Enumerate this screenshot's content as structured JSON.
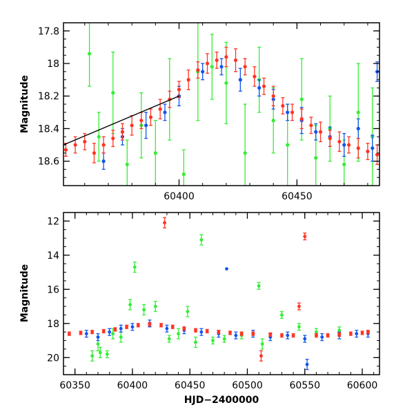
{
  "chart_data": [
    {
      "type": "scatter",
      "panel": "top",
      "title": "",
      "xlabel": "",
      "ylabel": "Magnitude",
      "xlim": [
        60351,
        60485
      ],
      "ylim": [
        18.75,
        17.75
      ],
      "y_inverted": true,
      "x_ticks": [
        "60400",
        "60450"
      ],
      "y_ticks": [
        "17.8",
        "18",
        "18.2",
        "18.4",
        "18.6"
      ],
      "colors": {
        "green": "#33ee33",
        "blue": "#1155ee",
        "red": "#ff3322",
        "trend": "#000000"
      },
      "series": [
        {
          "color": "green",
          "x": [
            60362,
            60366,
            60372,
            60378,
            60384,
            60390,
            60396,
            60402,
            60408,
            60414,
            60420,
            60428,
            60434,
            60440,
            60446,
            60452,
            60458,
            60464,
            60470,
            60476,
            60482
          ],
          "y": [
            17.94,
            18.45,
            18.18,
            18.62,
            18.38,
            18.55,
            18.22,
            18.68,
            18.05,
            18.02,
            18.12,
            18.55,
            18.1,
            18.35,
            18.5,
            18.22,
            18.58,
            18.4,
            18.62,
            18.3,
            18.45
          ],
          "yerr": [
            0.2,
            0.15,
            0.25,
            0.15,
            0.2,
            0.2,
            0.25,
            0.15,
            0.3,
            0.2,
            0.25,
            0.3,
            0.2,
            0.2,
            0.25,
            0.25,
            0.2,
            0.2,
            0.15,
            0.3,
            0.3
          ]
        },
        {
          "color": "blue",
          "x": [
            60368,
            60376,
            60386,
            60394,
            60400,
            60410,
            60418,
            60426,
            60434,
            60440,
            60446,
            60452,
            60458,
            60464,
            60470,
            60476,
            60482,
            60484
          ],
          "y": [
            18.6,
            18.45,
            18.38,
            18.3,
            18.2,
            18.05,
            18.02,
            18.1,
            18.15,
            18.22,
            18.3,
            18.35,
            18.42,
            18.45,
            18.5,
            18.4,
            18.52,
            18.05
          ],
          "yerr": [
            0.05,
            0.05,
            0.08,
            0.05,
            0.06,
            0.05,
            0.05,
            0.07,
            0.05,
            0.06,
            0.05,
            0.08,
            0.05,
            0.06,
            0.07,
            0.06,
            0.08,
            0.06
          ]
        },
        {
          "color": "red",
          "x": [
            60352,
            60356,
            60360,
            60364,
            60368,
            60372,
            60376,
            60380,
            60384,
            60388,
            60392,
            60396,
            60400,
            60404,
            60408,
            60412,
            60416,
            60420,
            60424,
            60428,
            60432,
            60436,
            60440,
            60444,
            60448,
            60452,
            60456,
            60460,
            60464,
            60468,
            60472,
            60476,
            60480,
            60484
          ],
          "y": [
            18.53,
            18.5,
            18.48,
            18.55,
            18.5,
            18.46,
            18.42,
            18.38,
            18.35,
            18.33,
            18.28,
            18.22,
            18.16,
            18.1,
            18.04,
            18.0,
            17.98,
            17.96,
            17.98,
            18.02,
            18.08,
            18.14,
            18.2,
            18.26,
            18.3,
            18.34,
            18.38,
            18.42,
            18.46,
            18.48,
            18.5,
            18.52,
            18.54,
            18.56
          ],
          "yerr": [
            0.04,
            0.05,
            0.05,
            0.06,
            0.05,
            0.05,
            0.05,
            0.06,
            0.05,
            0.05,
            0.06,
            0.05,
            0.05,
            0.06,
            0.05,
            0.06,
            0.05,
            0.06,
            0.07,
            0.05,
            0.06,
            0.05,
            0.06,
            0.05,
            0.05,
            0.06,
            0.05,
            0.06,
            0.05,
            0.06,
            0.05,
            0.06,
            0.05,
            0.06
          ]
        }
      ],
      "trend_line": {
        "x": [
          60351,
          60400
        ],
        "y": [
          18.5,
          18.2
        ]
      }
    },
    {
      "type": "scatter",
      "panel": "bottom",
      "title": "",
      "xlabel": "HJD−2400000",
      "ylabel": "Magnitude",
      "xlim": [
        60340,
        60615
      ],
      "ylim": [
        21,
        11.5
      ],
      "y_inverted": true,
      "x_ticks": [
        "60350",
        "60400",
        "60450",
        "60500",
        "60550",
        "60600"
      ],
      "y_ticks": [
        "12",
        "14",
        "16",
        "18",
        "20"
      ],
      "colors": {
        "green": "#33ee33",
        "blue": "#1155ee",
        "red": "#ff3322"
      },
      "series": [
        {
          "color": "green",
          "x": [
            60365,
            60370,
            60372,
            60378,
            60383,
            60390,
            60398,
            60402,
            60410,
            60420,
            60432,
            60440,
            60448,
            60455,
            60460,
            60470,
            60480,
            60495,
            60510,
            60513,
            60530,
            60545,
            60560,
            60580
          ],
          "y": [
            19.9,
            19.2,
            19.7,
            19.8,
            18.6,
            18.8,
            16.9,
            14.7,
            17.2,
            17.0,
            18.9,
            18.6,
            17.3,
            19.1,
            13.1,
            19.0,
            18.9,
            18.7,
            15.8,
            19.2,
            17.5,
            18.2,
            18.5,
            18.4
          ],
          "yerr": [
            0.3,
            0.4,
            0.3,
            0.2,
            0.3,
            0.3,
            0.3,
            0.3,
            0.3,
            0.3,
            0.2,
            0.3,
            0.3,
            0.3,
            0.3,
            0.2,
            0.2,
            0.2,
            0.2,
            0.3,
            0.2,
            0.2,
            0.2,
            0.2
          ]
        },
        {
          "color": "blue",
          "x": [
            60360,
            60370,
            60380,
            60390,
            60400,
            60415,
            60430,
            60445,
            60460,
            60475,
            60482,
            60490,
            60505,
            60520,
            60535,
            60550,
            60552,
            60565,
            60580,
            60595,
            60605
          ],
          "y": [
            18.6,
            18.8,
            18.5,
            18.3,
            18.2,
            18.0,
            18.3,
            18.4,
            18.5,
            18.6,
            14.8,
            18.7,
            18.6,
            18.8,
            18.7,
            18.9,
            20.4,
            18.8,
            18.7,
            18.6,
            18.6
          ],
          "yerr": [
            0.2,
            0.2,
            0.2,
            0.2,
            0.2,
            0.2,
            0.2,
            0.2,
            0.2,
            0.2,
            0.0,
            0.2,
            0.2,
            0.2,
            0.2,
            0.2,
            0.3,
            0.2,
            0.2,
            0.2,
            0.2
          ]
        },
        {
          "color": "red",
          "x": [
            60345,
            60355,
            60365,
            60375,
            60385,
            60395,
            60405,
            60415,
            60425,
            60428,
            60435,
            60445,
            60455,
            60465,
            60475,
            60485,
            60495,
            60505,
            60512,
            60520,
            60530,
            60540,
            60545,
            60550,
            60560,
            60570,
            60580,
            60590,
            60600,
            60605
          ],
          "y": [
            18.6,
            18.55,
            18.5,
            18.45,
            18.35,
            18.2,
            18.1,
            18.05,
            18.1,
            12.1,
            18.2,
            18.3,
            18.4,
            18.45,
            18.5,
            18.55,
            18.6,
            18.6,
            19.9,
            18.65,
            18.7,
            18.7,
            17.0,
            12.9,
            18.7,
            18.7,
            18.65,
            18.6,
            18.55,
            18.5
          ],
          "yerr": [
            0.1,
            0.1,
            0.1,
            0.1,
            0.1,
            0.1,
            0.1,
            0.1,
            0.1,
            0.3,
            0.1,
            0.1,
            0.1,
            0.1,
            0.1,
            0.1,
            0.1,
            0.1,
            0.3,
            0.1,
            0.1,
            0.1,
            0.2,
            0.2,
            0.1,
            0.1,
            0.1,
            0.1,
            0.1,
            0.1
          ]
        }
      ]
    }
  ]
}
